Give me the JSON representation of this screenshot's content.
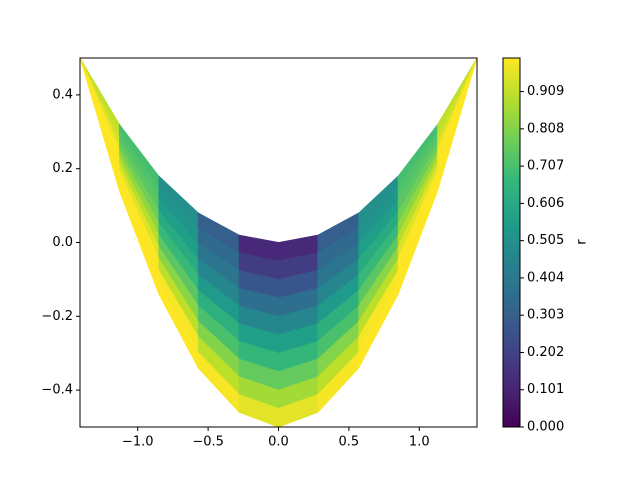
{
  "chart_data": {
    "type": "mesh",
    "colormap": "viridis",
    "colorbar_label": "r",
    "x": [
      -1.41,
      -1.13,
      -0.85,
      -0.57,
      -0.28,
      0,
      0.28,
      0.57,
      0.85,
      1.13,
      1.41
    ],
    "upper": [
      0.5,
      0.32,
      0.18,
      0.08,
      0.02,
      0,
      0.02,
      0.08,
      0.18,
      0.32,
      0.5
    ],
    "lower": [
      0.5,
      0.14,
      -0.14,
      -0.34,
      -0.46,
      -0.5,
      -0.46,
      -0.34,
      -0.14,
      0.14,
      0.5
    ],
    "values": [
      [
        0.9,
        0.7,
        0.5,
        0.3,
        0.11,
        0.11,
        0.3,
        0.5,
        0.7,
        0.9
      ],
      [
        0.91,
        0.72,
        0.52,
        0.34,
        0.18,
        0.18,
        0.34,
        0.52,
        0.72,
        0.91
      ],
      [
        0.93,
        0.74,
        0.56,
        0.39,
        0.27,
        0.27,
        0.39,
        0.56,
        0.74,
        0.93
      ],
      [
        0.96,
        0.78,
        0.61,
        0.46,
        0.36,
        0.36,
        0.46,
        0.61,
        0.78,
        0.96
      ],
      [
        1.0,
        0.83,
        0.67,
        0.54,
        0.46,
        0.46,
        0.54,
        0.67,
        0.83,
        1.0
      ],
      [
        1.0,
        0.89,
        0.74,
        0.63,
        0.56,
        0.56,
        0.63,
        0.74,
        0.89,
        1.0
      ],
      [
        1.0,
        0.95,
        0.82,
        0.71,
        0.66,
        0.66,
        0.71,
        0.82,
        0.95,
        1.0
      ],
      [
        1.0,
        1.0,
        0.9,
        0.81,
        0.76,
        0.76,
        0.81,
        0.9,
        1.0,
        1.0
      ],
      [
        1.0,
        1.0,
        0.99,
        0.9,
        0.86,
        0.86,
        0.9,
        0.99,
        1.0,
        1.0
      ],
      [
        1.0,
        1.0,
        1.0,
        0.99,
        0.96,
        0.96,
        0.99,
        1.0,
        1.0,
        1.0
      ]
    ],
    "clim": [
      0,
      1
    ],
    "xlim": [
      -1.41,
      1.41
    ],
    "ylim": [
      -0.5,
      0.5
    ],
    "xticks": [
      {
        "value": -1.0,
        "label": "−1.0"
      },
      {
        "value": -0.5,
        "label": "−0.5"
      },
      {
        "value": 0,
        "label": "0.0"
      },
      0.5,
      {
        "value": 1.0,
        "label": "1.0"
      }
    ],
    "yticks": [
      {
        "value": -0.4,
        "label": "−0.4"
      },
      {
        "value": -0.2,
        "label": "−0.2"
      },
      {
        "value": 0,
        "label": "0.0"
      },
      0.2,
      0.4
    ],
    "cticks": [
      {
        "value": 0,
        "label": "0.000"
      },
      0.101,
      0.202,
      0.303,
      0.404,
      0.505,
      0.606,
      0.707,
      0.808,
      0.909
    ]
  }
}
